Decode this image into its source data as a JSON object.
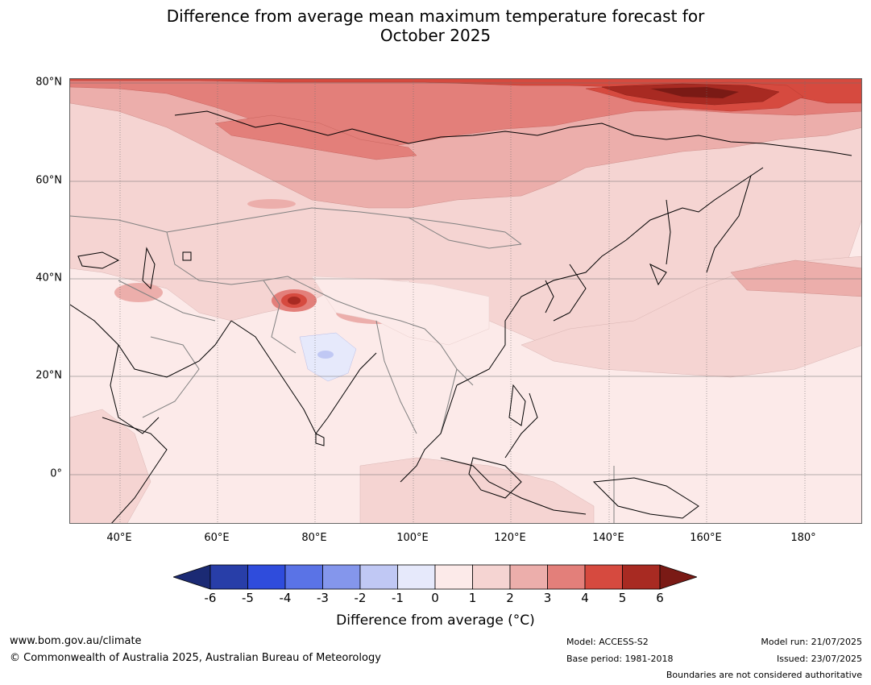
{
  "title_line1": "Difference from average mean maximum temperature forecast for",
  "title_line2": "October 2025",
  "map": {
    "lat_labels": [
      "80°N",
      "60°N",
      "40°N",
      "20°N",
      "0°"
    ],
    "lon_labels": [
      "40°E",
      "60°E",
      "80°E",
      "100°E",
      "120°E",
      "140°E",
      "160°E",
      "180°"
    ],
    "anomaly_colors": {
      "-6": "#1b2a74",
      "-5": "#283ea8",
      "-4": "#2f4cdc",
      "-3": "#5a73e6",
      "-2": "#8496ec",
      "-1": "#c0c8f4",
      "0": "#e6e9fb",
      "0to1": "#fceae9",
      "1to2": "#f5d4d2",
      "2to3": "#ecaeab",
      "3to4": "#e37f7a",
      "4to5": "#d64a3f",
      "5to6": "#a82a22",
      "gt6": "#7a1a15"
    },
    "coastline_color": "#000000",
    "border_color": "#808080"
  },
  "colorbar": {
    "ticks": [
      "-6",
      "-5",
      "-4",
      "-3",
      "-2",
      "-1",
      "0",
      "1",
      "2",
      "3",
      "4",
      "5",
      "6"
    ],
    "colors": [
      "#283ea8",
      "#2f4cdc",
      "#5a73e6",
      "#8496ec",
      "#c0c8f4",
      "#e6e9fb",
      "#fceae9",
      "#f5d4d2",
      "#ecaeab",
      "#e37f7a",
      "#d64a3f",
      "#a82a22"
    ],
    "low_extend_color": "#1b2a74",
    "high_extend_color": "#7a1a15",
    "label": "Difference from average (°C)"
  },
  "footer": {
    "website": "www.bom.gov.au/climate",
    "copyright": "© Commonwealth of Australia 2025, Australian Bureau of Meteorology",
    "model": "Model: ACCESS-S2",
    "base_period": "Base period: 1981-2018",
    "model_run": "Model run: 21/07/2025",
    "issued": "Issued: 23/07/2025",
    "disclaimer": "Boundaries are not considered authoritative"
  }
}
